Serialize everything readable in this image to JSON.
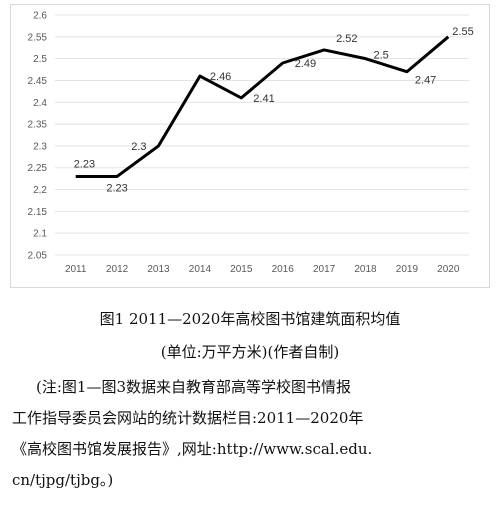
{
  "chart_data": {
    "type": "line",
    "categories": [
      "2011",
      "2012",
      "2013",
      "2014",
      "2015",
      "2016",
      "2017",
      "2018",
      "2019",
      "2020"
    ],
    "values": [
      2.23,
      2.23,
      2.3,
      2.46,
      2.41,
      2.49,
      2.52,
      2.5,
      2.47,
      2.55
    ],
    "data_labels": [
      "2.23",
      "2.23",
      "2.3",
      "2.46",
      "2.41",
      "2.49",
      "2.52",
      "2.5",
      "2.47",
      "2.55"
    ],
    "y_ticks": [
      "2.05",
      "2.1",
      "2.15",
      "2.2",
      "2.25",
      "2.3",
      "2.35",
      "2.4",
      "2.45",
      "2.5",
      "2.55",
      "2.6"
    ],
    "ylim": [
      2.05,
      2.6
    ],
    "grid": true,
    "line_color": "#000000",
    "legend": "none"
  },
  "caption": {
    "title": "图1 2011—2020年高校图书馆建筑面积均值",
    "unit": "(单位:万平方米)(作者自制)"
  },
  "note": {
    "lines": [
      "(注:图1—图3数据来自教育部高等学校图书情报",
      "工作指导委员会网站的统计数据栏目:2011—2020年",
      "《高校图书馆发展报告》,网址:http://www.scal.edu.",
      "cn/tjpg/tjbg。)"
    ]
  }
}
